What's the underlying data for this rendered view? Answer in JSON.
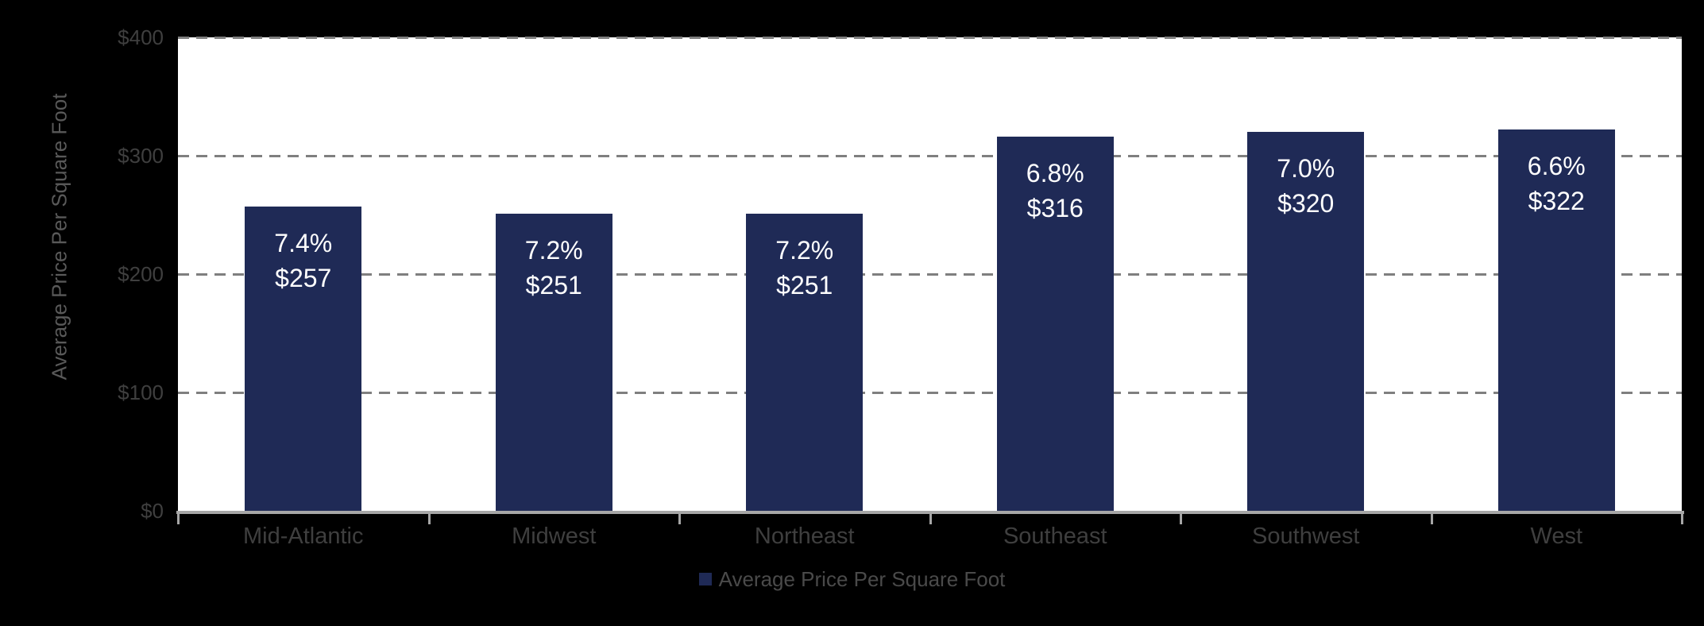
{
  "chart_data": {
    "type": "bar",
    "title": "",
    "categories": [
      "Mid-Atlantic",
      "Midwest",
      "Northeast",
      "Southeast",
      "Southwest",
      "West"
    ],
    "series": [
      {
        "name": "Average Price Per Square Foot",
        "values": [
          257,
          251,
          251,
          316,
          320,
          322
        ],
        "color": "#1F2A56"
      }
    ],
    "bar_labels": [
      {
        "pct": "7.4%",
        "price": "$257"
      },
      {
        "pct": "7.2%",
        "price": "$251"
      },
      {
        "pct": "7.2%",
        "price": "$251"
      },
      {
        "pct": "6.8%",
        "price": "$316"
      },
      {
        "pct": "7.0%",
        "price": "$320"
      },
      {
        "pct": "6.6%",
        "price": "$322"
      }
    ],
    "xlabel": "",
    "ylabel": "Average Price Per Square Foot",
    "ylim": [
      0,
      400
    ],
    "ytick_interval": 100,
    "ytick_labels": [
      "$0",
      "$100",
      "$200",
      "$300",
      "$400"
    ],
    "grid": "horizontal-dashed",
    "legend": {
      "position": "bottom-center",
      "label": "Average Price Per Square Foot",
      "marker": "square",
      "marker_color": "#1F2A56"
    }
  },
  "colors": {
    "background": "#000000",
    "plot_background": "#ffffff",
    "bar_fill": "#1F2A56",
    "bar_label_text": "#ffffff",
    "gridline": "#7f7f7f",
    "axis_line": "#a6a6a6",
    "tick_text": "#3f3f3f",
    "category_text": "#3f3f3f",
    "legend_text": "#4a4a4a",
    "axis_title_text": "#595959"
  }
}
